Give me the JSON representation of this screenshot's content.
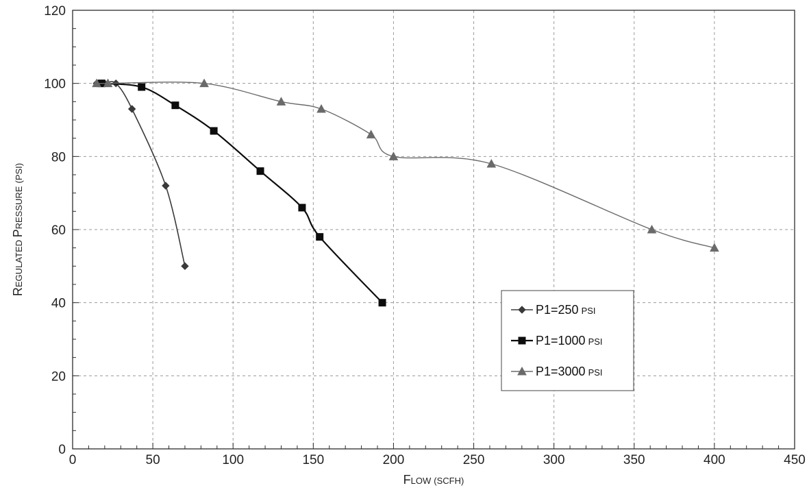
{
  "chart_data": {
    "type": "line",
    "title": "",
    "xlabel": {
      "cap": "F",
      "small": "low",
      "unit": "(scfh)"
    },
    "ylabel": {
      "cap1": "R",
      "small1": "egulated ",
      "cap2": "P",
      "small2": "ressure",
      "unit": "(psi)"
    },
    "xlim": [
      0,
      450
    ],
    "ylim": [
      0,
      120
    ],
    "x_ticks": [
      0,
      50,
      100,
      150,
      200,
      250,
      300,
      350,
      400,
      450
    ],
    "y_ticks": [
      0,
      20,
      40,
      60,
      80,
      100,
      120
    ],
    "grid": true,
    "legend_position": "lower-right",
    "series": [
      {
        "name": "P1=250",
        "unit": "psi",
        "marker": "diamond",
        "color": "#3a3a3a",
        "x": [
          15,
          20,
          27,
          37,
          58,
          70
        ],
        "y": [
          100,
          100,
          100,
          93,
          72,
          50
        ]
      },
      {
        "name": "P1=1000",
        "unit": "psi",
        "marker": "square",
        "color": "#0d0d0d",
        "x": [
          18,
          43,
          64,
          88,
          117,
          143,
          154,
          193
        ],
        "y": [
          100,
          99,
          94,
          87,
          76,
          66,
          58,
          40
        ]
      },
      {
        "name": "P1=3000",
        "unit": "psi",
        "marker": "triangle",
        "color": "#6a6a6a",
        "x": [
          15,
          22,
          82,
          130,
          155,
          186,
          200,
          261,
          361,
          400
        ],
        "y": [
          100,
          100,
          100,
          95,
          93,
          86,
          80,
          78,
          60,
          55
        ]
      }
    ]
  }
}
